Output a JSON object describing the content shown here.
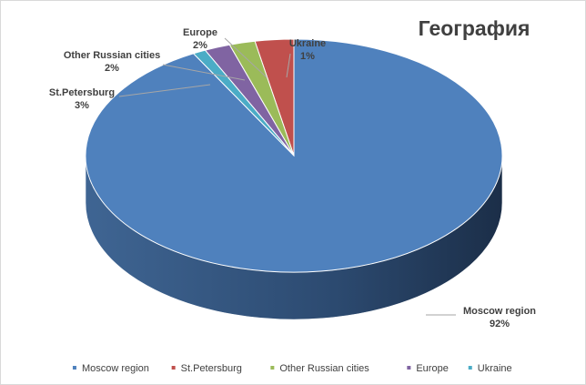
{
  "chart_data": {
    "type": "pie",
    "title": "География",
    "categories": [
      "Moscow region",
      "St.Petersburg",
      "Other Russian cities",
      "Europe",
      "Ukraine"
    ],
    "values": [
      92,
      3,
      2,
      2,
      1
    ],
    "labels": [
      "92%",
      "3%",
      "2%",
      "2%",
      "1%"
    ],
    "colors": [
      "#4f81bd",
      "#c0504d",
      "#9bbb59",
      "#8064a2",
      "#4bacc6"
    ],
    "three_d": true,
    "legend": "bottom"
  }
}
